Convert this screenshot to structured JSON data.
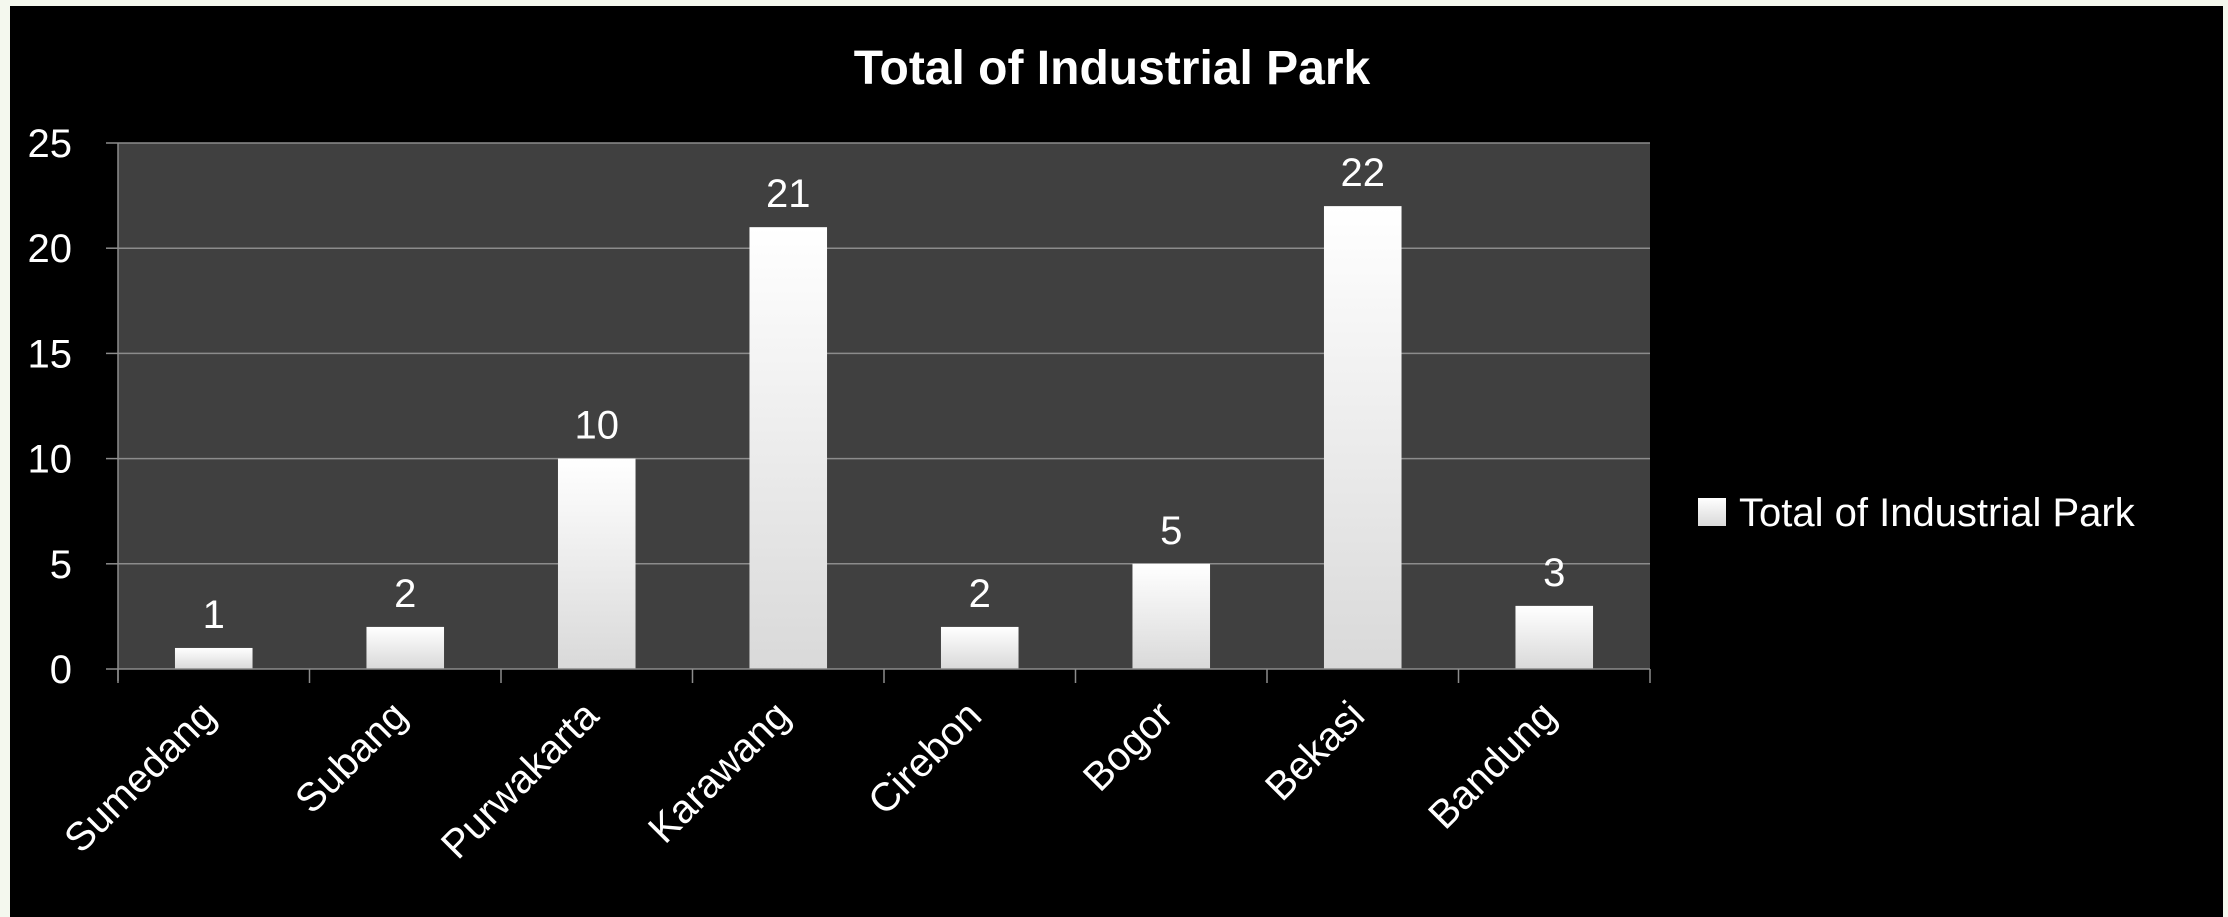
{
  "chart_data": {
    "type": "bar",
    "title": "Total of Industrial Park",
    "categories": [
      "Sumedang",
      "Subang",
      "Purwakarta",
      "Karawang",
      "Cirebon",
      "Bogor",
      "Bekasi",
      "Bandung"
    ],
    "series": [
      {
        "name": "Total of Industrial Park",
        "values": [
          1,
          2,
          10,
          21,
          2,
          5,
          22,
          3
        ]
      }
    ],
    "xlabel": "",
    "ylabel": "",
    "ylim": [
      0,
      25
    ],
    "yticks": [
      0,
      5,
      10,
      15,
      20,
      25
    ],
    "data_labels": true,
    "grid": true,
    "legend": "right",
    "colors": {
      "background": "#000000",
      "plot_area": "#404040",
      "gridline": "#8c8c8c",
      "bar_top": "#ffffff",
      "bar_bottom": "#d9d9d9",
      "text": "#ffffff"
    }
  }
}
